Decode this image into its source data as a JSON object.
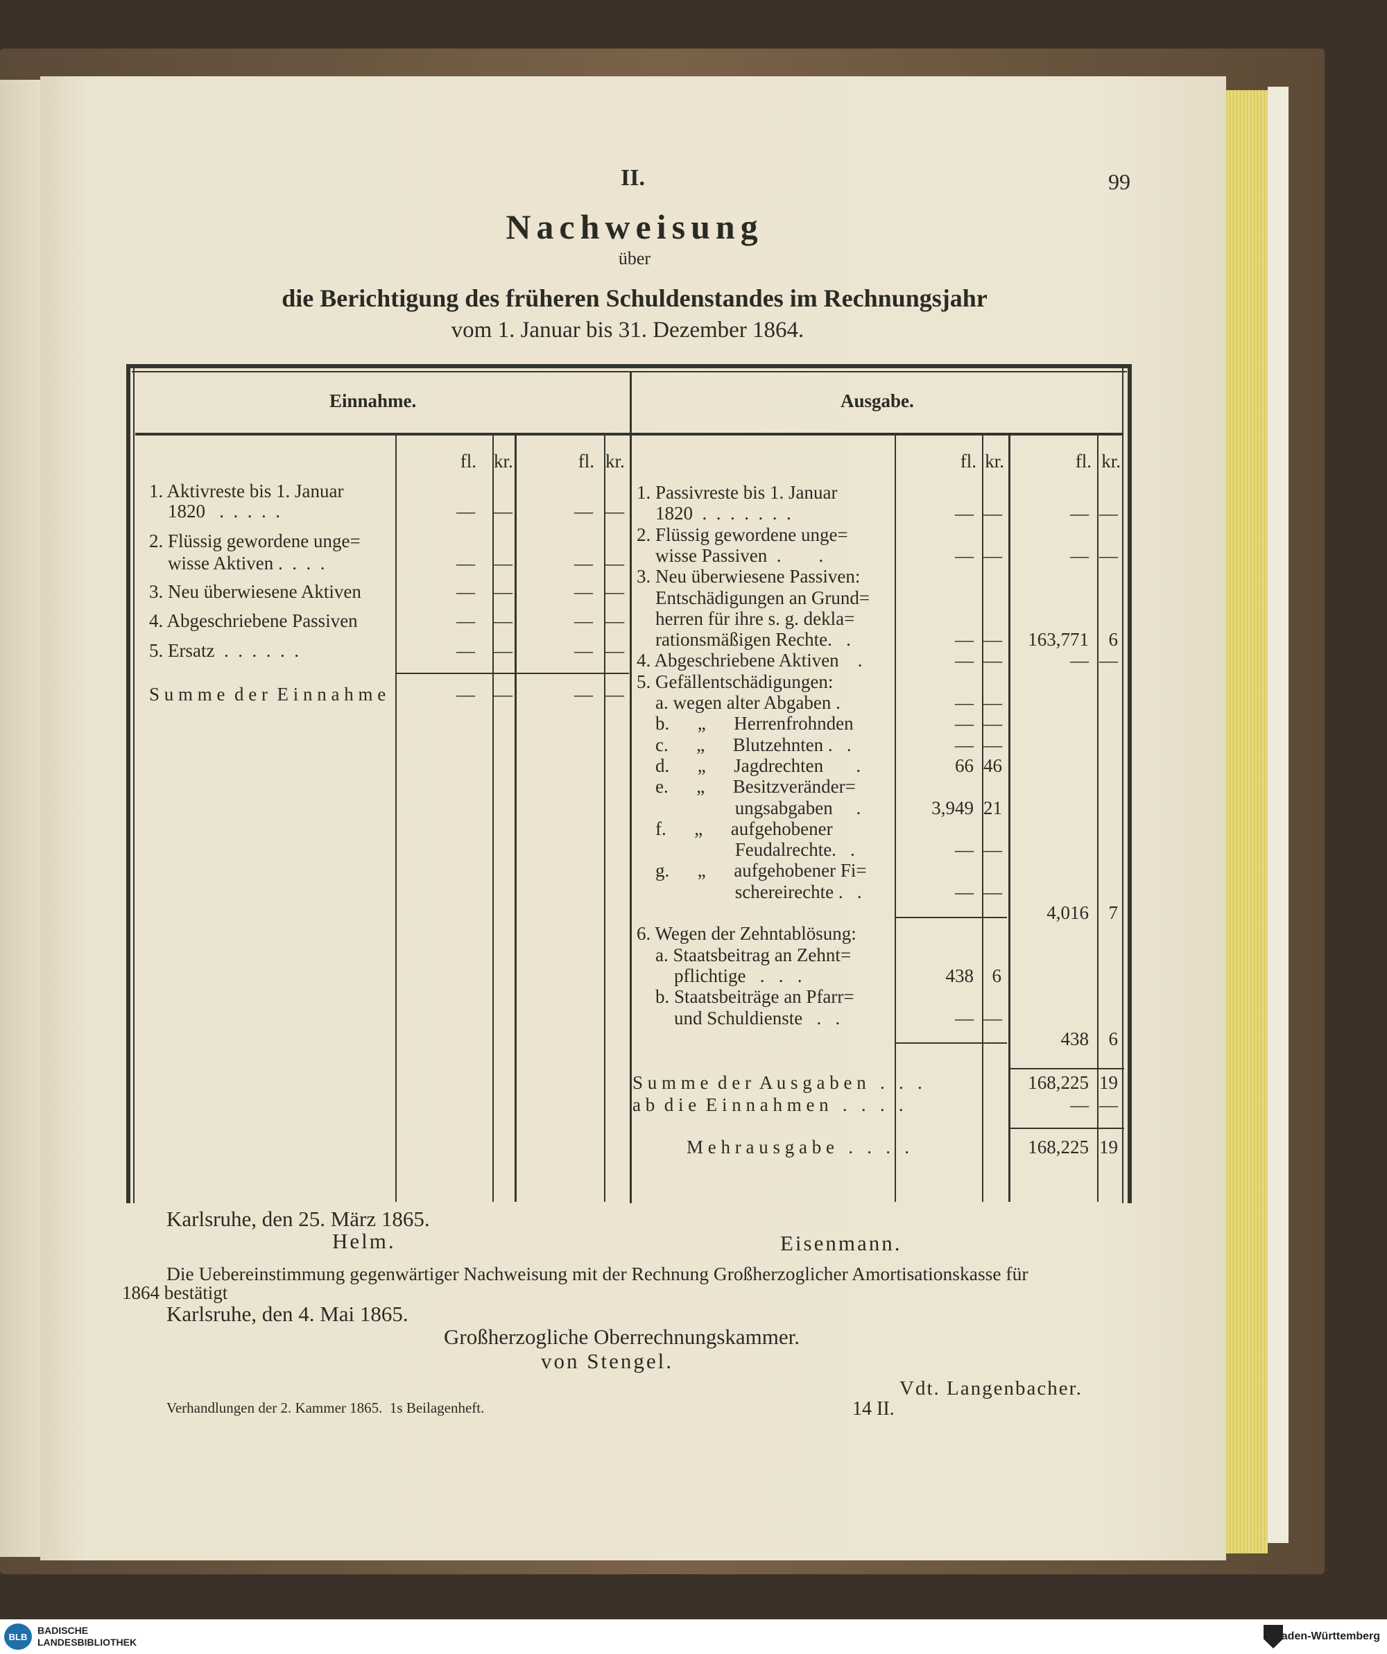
{
  "header": {
    "section": "II.",
    "page_number": "99"
  },
  "title": {
    "main": "Nachweisung",
    "over": "über",
    "subtitle": "die Berichtigung des früheren Schuldenstandes im Rechnungsjahr",
    "period": "vom 1. Januar bis 31. Dezember 1864."
  },
  "table": {
    "einnahme_header": "Einnahme.",
    "ausgabe_header": "Ausgabe.",
    "col_fl": "fl.",
    "col_kr": "kr.",
    "einnahme_lines": [
      {
        "text": "1. Aktivreste bis 1. Januar",
        "fl1": "",
        "kr1": "",
        "fl2": "",
        "kr2": ""
      },
      {
        "text": "    1820   .  .  .  .  .",
        "fl1": "—",
        "kr1": "—",
        "fl2": "—",
        "kr2": "—"
      },
      {
        "text": "2. Flüssig gewordene unge=",
        "fl1": "",
        "kr1": "",
        "fl2": "",
        "kr2": ""
      },
      {
        "text": "    wisse Aktiven .  .  .  .",
        "fl1": "—",
        "kr1": "—",
        "fl2": "—",
        "kr2": "—"
      },
      {
        "text": "3. Neu überwiesene Aktiven",
        "fl1": "—",
        "kr1": "—",
        "fl2": "—",
        "kr2": "—"
      },
      {
        "text": "4. Abgeschriebene Passiven",
        "fl1": "—",
        "kr1": "—",
        "fl2": "—",
        "kr2": "—"
      },
      {
        "text": "5. Ersatz  .  .  .  .  .  .",
        "fl1": "—",
        "kr1": "—",
        "fl2": "—",
        "kr2": "—"
      },
      {
        "text": "S u m m e  d e r  E i n n a h m e",
        "fl1": "—",
        "kr1": "—",
        "fl2": "—",
        "kr2": "—"
      }
    ],
    "ausgabe_lines": [
      {
        "text": "1. Passivreste bis 1. Januar",
        "fl1": "",
        "kr1": "",
        "fl2": "",
        "kr2": ""
      },
      {
        "text": "    1820  .  .  .  .  .  .  .",
        "fl1": "—",
        "kr1": "—",
        "fl2": "—",
        "kr2": "—"
      },
      {
        "text": "2. Flüssig gewordene unge=",
        "fl1": "",
        "kr1": "",
        "fl2": "",
        "kr2": ""
      },
      {
        "text": "    wisse Passiven  .        .",
        "fl1": "—",
        "kr1": "—",
        "fl2": "—",
        "kr2": "—"
      },
      {
        "text": "3. Neu überwiesene Passiven:",
        "fl1": "",
        "kr1": "",
        "fl2": "",
        "kr2": ""
      },
      {
        "text": "    Entschädigungen an Grund=",
        "fl1": "",
        "kr1": "",
        "fl2": "",
        "kr2": ""
      },
      {
        "text": "    herren für ihre s. g. dekla=",
        "fl1": "",
        "kr1": "",
        "fl2": "",
        "kr2": ""
      },
      {
        "text": "    rationsmäßigen Rechte.   .",
        "fl1": "—",
        "kr1": "—",
        "fl2": "163,771",
        "kr2": "6"
      },
      {
        "text": "4. Abgeschriebene Aktiven    .",
        "fl1": "—",
        "kr1": "—",
        "fl2": "—",
        "kr2": "—"
      },
      {
        "text": "5. Gefällentschädigungen:",
        "fl1": "",
        "kr1": "",
        "fl2": "",
        "kr2": ""
      },
      {
        "text": "    a. wegen alter Abgaben .",
        "fl1": "—",
        "kr1": "—",
        "fl2": "",
        "kr2": ""
      },
      {
        "text": "    b.      „      Herrenfrohnden",
        "fl1": "—",
        "kr1": "—",
        "fl2": "",
        "kr2": ""
      },
      {
        "text": "    c.      „      Blutzehnten .   .",
        "fl1": "—",
        "kr1": "—",
        "fl2": "",
        "kr2": ""
      },
      {
        "text": "    d.      „      Jagdrechten       .",
        "fl1": "66",
        "kr1": "46",
        "fl2": "",
        "kr2": ""
      },
      {
        "text": "    e.      „      Besitzveränder=",
        "fl1": "",
        "kr1": "",
        "fl2": "",
        "kr2": ""
      },
      {
        "text": "                     ungsabgaben     .",
        "fl1": "3,949",
        "kr1": "21",
        "fl2": "",
        "kr2": ""
      },
      {
        "text": "    f.      „      aufgehobener",
        "fl1": "",
        "kr1": "",
        "fl2": "",
        "kr2": ""
      },
      {
        "text": "                     Feudalrechte.   .",
        "fl1": "—",
        "kr1": "—",
        "fl2": "",
        "kr2": ""
      },
      {
        "text": "    g.      „      aufgehobener Fi=",
        "fl1": "",
        "kr1": "",
        "fl2": "",
        "kr2": ""
      },
      {
        "text": "                     schereirechte .   .",
        "fl1": "—",
        "kr1": "—",
        "fl2": "",
        "kr2": ""
      },
      {
        "text": "",
        "fl1": "",
        "kr1": "",
        "fl2": "4,016",
        "kr2": "7"
      },
      {
        "text": "6. Wegen der Zehntablösung:",
        "fl1": "",
        "kr1": "",
        "fl2": "",
        "kr2": ""
      },
      {
        "text": "    a. Staatsbeitrag an Zehnt=",
        "fl1": "",
        "kr1": "",
        "fl2": "",
        "kr2": ""
      },
      {
        "text": "        pflichtige   .   .   .",
        "fl1": "438",
        "kr1": "6",
        "fl2": "",
        "kr2": ""
      },
      {
        "text": "    b. Staatsbeiträge an Pfarr=",
        "fl1": "",
        "kr1": "",
        "fl2": "",
        "kr2": ""
      },
      {
        "text": "        und Schuldienste   .   .",
        "fl1": "—",
        "kr1": "—",
        "fl2": "",
        "kr2": ""
      },
      {
        "text": "",
        "fl1": "",
        "kr1": "",
        "fl2": "438",
        "kr2": "6"
      }
    ],
    "totals": [
      {
        "text": "S u m m e  d e r  A u s g a b e n   .   .   .",
        "fl2": "168,225",
        "kr2": "19"
      },
      {
        "text": "a b  d i e  E i n n a h m e n   .   .   .   .",
        "fl2": "—",
        "kr2": "—"
      },
      {
        "text": "M e h r a u s g a b e   .   .   .   .",
        "fl2": "168,225",
        "kr2": "19"
      }
    ]
  },
  "footer": {
    "place_date1": "Karlsruhe, den 25. März 1865.",
    "sign1": "Helm.",
    "sign2": "Eisenmann.",
    "confirmation_line1": "Die Uebereinstimmung gegenwärtiger Nachweisung mit der Rechnung Großherzoglicher Amortisationskasse für",
    "confirmation_line2": "1864 bestätigt",
    "place_date2": "Karlsruhe, den 4. Mai 1865.",
    "authority": "Großherzogliche Oberrechnungskammer.",
    "sign3": "von Stengel.",
    "sign4": "Vdt. Langenbacher.",
    "publication": "Verhandlungen der 2. Kammer 1865.  1s Beilagenheft.",
    "signature_mark": "14 II."
  },
  "branding": {
    "left_logo": "BLB",
    "left_text_1": "BADISCHE",
    "left_text_2": "LANDESBIBLIOTHEK",
    "right_text": "Baden-Württemberg"
  }
}
